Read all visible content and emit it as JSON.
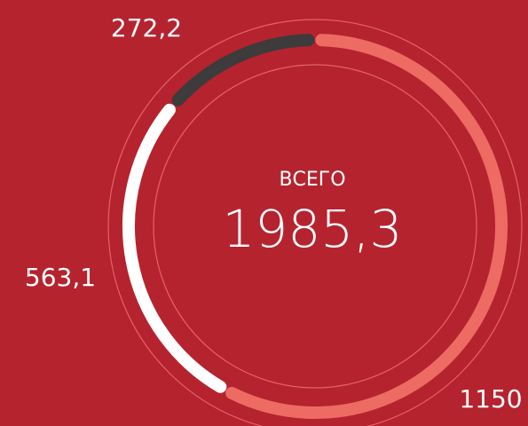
{
  "chart_data": {
    "type": "donut",
    "title": "ВСЕГО",
    "total": 1985.3,
    "total_label": "1985,3",
    "values": [
      1150,
      563.1,
      272.2
    ],
    "value_labels": [
      "1150",
      "563,1",
      "272,2"
    ],
    "colors": [
      "#ee6b64",
      "#ffffff",
      "#3d3b3b"
    ]
  }
}
